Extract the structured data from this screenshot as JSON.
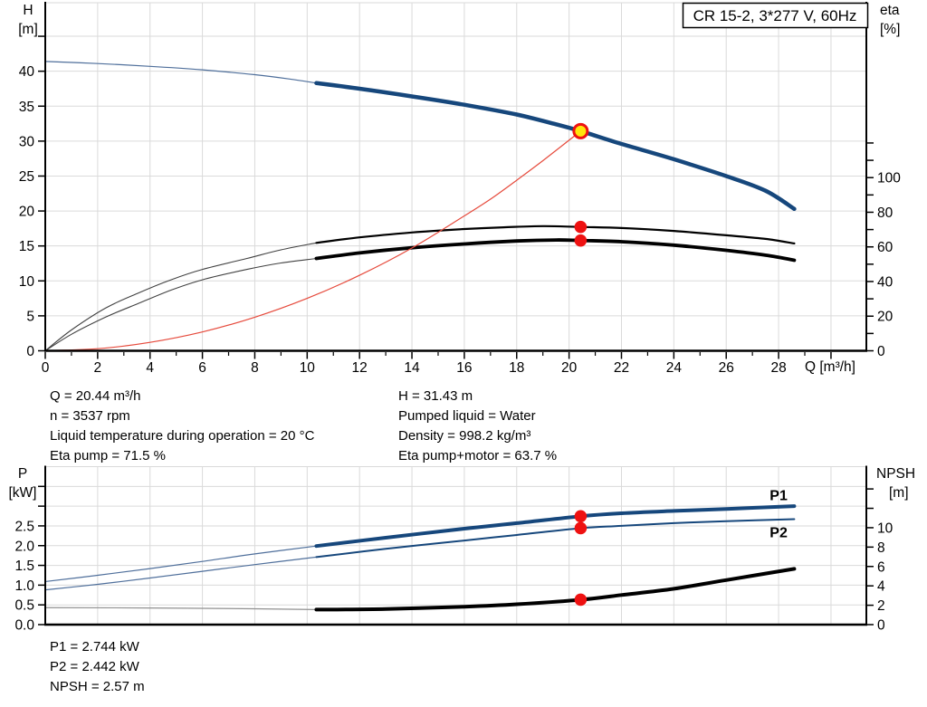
{
  "colors": {
    "navy": "#16477c",
    "navy_thin": "#4f6f9b",
    "black": "#000000",
    "black_thin": "#404040",
    "gray_thin": "#909090",
    "red": "#e64a3c",
    "red_dot": "#ee1111",
    "yellow": "#ffe50a",
    "grid": "#dadada"
  },
  "info_blocks": {
    "upper_left": [
      "Q = 20.44 m³/h",
      "n = 3537 rpm",
      "Liquid temperature during operation = 20 °C",
      "Eta pump = 71.5 %"
    ],
    "upper_right": [
      "H = 31.43 m",
      "Pumped liquid = Water",
      "Density = 998.2 kg/m³",
      "Eta pump+motor = 63.7 %"
    ],
    "lower": [
      "P1 = 2.744 kW",
      "P2 = 2.442 kW",
      "NPSH = 2.57 m"
    ]
  },
  "chart_data": [
    {
      "type": "line",
      "title": "CR 15-2, 3*277 V, 60Hz",
      "x": {
        "label": "Q [m³/h]",
        "lim": [
          0,
          31.35
        ],
        "major_labeled": [
          0,
          2,
          4,
          6,
          8,
          10,
          12,
          14,
          16,
          18,
          20,
          22,
          24,
          26,
          28
        ],
        "major_unlabeled": [
          30
        ],
        "minor": [
          1,
          3,
          5,
          7,
          9,
          11,
          13,
          15,
          17,
          19,
          21,
          23,
          25,
          27,
          29
        ],
        "grid": [
          2,
          4,
          6,
          8,
          10,
          12,
          14,
          16,
          18,
          20,
          22,
          24,
          26,
          28,
          30
        ]
      },
      "y_left": {
        "title_lines": [
          "H",
          "[m]"
        ],
        "lim": [
          0,
          49.8
        ],
        "ticks": [
          {
            "v": 0,
            "t": "0"
          },
          {
            "v": 5,
            "t": "5"
          },
          {
            "v": 10,
            "t": "10"
          },
          {
            "v": 15,
            "t": "15"
          },
          {
            "v": 20,
            "t": "20"
          },
          {
            "v": 25,
            "t": "25"
          },
          {
            "v": 30,
            "t": "30"
          },
          {
            "v": 35,
            "t": "35"
          },
          {
            "v": 40,
            "t": "40"
          },
          {
            "v": 45,
            "t": ""
          }
        ],
        "grid": [
          5,
          10,
          15,
          20,
          25,
          30,
          35,
          40,
          45
        ]
      },
      "y_right": {
        "title_lines": [
          "eta",
          "[%]"
        ],
        "lim": [
          0,
          201
        ],
        "ticks": [
          {
            "v": 0,
            "t": "0"
          },
          {
            "v": 10,
            "t": ""
          },
          {
            "v": 20,
            "t": "20"
          },
          {
            "v": 30,
            "t": ""
          },
          {
            "v": 40,
            "t": "40"
          },
          {
            "v": 50,
            "t": ""
          },
          {
            "v": 60,
            "t": "60"
          },
          {
            "v": 70,
            "t": ""
          },
          {
            "v": 80,
            "t": "80"
          },
          {
            "v": 90,
            "t": ""
          },
          {
            "v": 100,
            "t": "100"
          },
          {
            "v": 110,
            "t": ""
          },
          {
            "v": 120,
            "t": ""
          }
        ],
        "grid": []
      },
      "series": [
        {
          "name": "qh-out-of-range",
          "axis": "left",
          "color": "navy_thin",
          "width": 1.2,
          "points": [
            [
              0,
              41.4
            ],
            [
              2,
              41.1
            ],
            [
              4,
              40.7
            ],
            [
              6,
              40.2
            ],
            [
              8,
              39.5
            ],
            [
              9.3,
              38.9
            ],
            [
              10.35,
              38.3
            ]
          ]
        },
        {
          "name": "qh",
          "axis": "left",
          "color": "navy",
          "width": 4.5,
          "points": [
            [
              10.35,
              38.3
            ],
            [
              12,
              37.5
            ],
            [
              14,
              36.4
            ],
            [
              16,
              35.2
            ],
            [
              18,
              33.8
            ],
            [
              19.5,
              32.4
            ],
            [
              20.44,
              31.43
            ],
            [
              22,
              29.6
            ],
            [
              24,
              27.4
            ],
            [
              26,
              25.0
            ],
            [
              27.5,
              22.9
            ],
            [
              28.6,
              20.3
            ]
          ]
        },
        {
          "name": "eta-pump-out-of-range",
          "axis": "right",
          "color": "black_thin",
          "width": 1.1,
          "points": [
            [
              0,
              0
            ],
            [
              1,
              12
            ],
            [
              2.3,
              24.6
            ],
            [
              3.5,
              33
            ],
            [
              4.8,
              41
            ],
            [
              6,
              47
            ],
            [
              7.7,
              53.3
            ],
            [
              9,
              58.3
            ],
            [
              10.35,
              62.3
            ]
          ]
        },
        {
          "name": "eta-pump",
          "axis": "right",
          "color": "black",
          "width": 2.2,
          "points": [
            [
              10.35,
              62.3
            ],
            [
              12,
              65.5
            ],
            [
              14,
              68.3
            ],
            [
              16,
              70.3
            ],
            [
              17.5,
              71.3
            ],
            [
              19,
              72.0
            ],
            [
              20.44,
              71.5
            ],
            [
              22,
              70.9
            ],
            [
              24,
              69.2
            ],
            [
              26,
              66.7
            ],
            [
              27.5,
              64.6
            ],
            [
              28.6,
              62.0
            ]
          ]
        },
        {
          "name": "eta-pump-motor-out-of-range",
          "axis": "right",
          "color": "black_thin",
          "width": 1.1,
          "points": [
            [
              0,
              0
            ],
            [
              1,
              9.5
            ],
            [
              2.3,
              19.4
            ],
            [
              3.5,
              27
            ],
            [
              4.8,
              35
            ],
            [
              6,
              41
            ],
            [
              7.7,
              47
            ],
            [
              9,
              50.7
            ],
            [
              10.35,
              53.3
            ]
          ]
        },
        {
          "name": "eta-pump-motor",
          "axis": "right",
          "color": "black",
          "width": 3.8,
          "points": [
            [
              10.35,
              53.3
            ],
            [
              12,
              56.5
            ],
            [
              14,
              59.5
            ],
            [
              16,
              61.7
            ],
            [
              18,
              63.4
            ],
            [
              19.5,
              64.0
            ],
            [
              20.44,
              63.7
            ],
            [
              22,
              63.0
            ],
            [
              24,
              61.0
            ],
            [
              26,
              58.0
            ],
            [
              27.5,
              55.2
            ],
            [
              28.6,
              52.3
            ]
          ]
        },
        {
          "name": "system-curve",
          "axis": "left",
          "color": "red",
          "width": 1.2,
          "points": [
            [
              0,
              0.02
            ],
            [
              2,
              0.3
            ],
            [
              4,
              1.2
            ],
            [
              6,
              2.7
            ],
            [
              8,
              4.8
            ],
            [
              10,
              7.5
            ],
            [
              12,
              10.8
            ],
            [
              14,
              14.7
            ],
            [
              16,
              19.3
            ],
            [
              17,
              21.7
            ],
            [
              18,
              24.4
            ],
            [
              19,
              27.2
            ],
            [
              20.44,
              31.43
            ]
          ]
        }
      ],
      "markers": [
        {
          "kind": "dot",
          "axis": "right",
          "q": 20.44,
          "v": 71.5
        },
        {
          "kind": "dot",
          "axis": "right",
          "q": 20.44,
          "v": 63.7
        },
        {
          "kind": "duty",
          "axis": "left",
          "q": 20.44,
          "v": 31.43
        }
      ],
      "curve_labels": []
    },
    {
      "type": "line",
      "x": {
        "label": "",
        "lim": [
          0,
          31.35
        ],
        "major_labeled": [],
        "major_unlabeled": [],
        "minor": [],
        "grid": [
          2,
          4,
          6,
          8,
          10,
          12,
          14,
          16,
          18,
          20,
          22,
          24,
          26,
          28,
          30
        ]
      },
      "y_left": {
        "title_lines": [
          "P",
          "[kW]"
        ],
        "lim": [
          0,
          4.0
        ],
        "ticks": [
          {
            "v": 0,
            "t": "0.0"
          },
          {
            "v": 0.5,
            "t": "0.5"
          },
          {
            "v": 1.0,
            "t": "1.0"
          },
          {
            "v": 1.5,
            "t": "1.5"
          },
          {
            "v": 2.0,
            "t": "2.0"
          },
          {
            "v": 2.5,
            "t": "2.5"
          },
          {
            "v": 3.0,
            "t": ""
          },
          {
            "v": 3.5,
            "t": ""
          }
        ],
        "grid": [
          0.5,
          1.0,
          1.5,
          2.0,
          2.5,
          3.0,
          3.5
        ]
      },
      "y_right": {
        "title_lines": [
          "NPSH",
          "[m]"
        ],
        "lim": [
          0,
          16.3
        ],
        "ticks": [
          {
            "v": 0,
            "t": "0"
          },
          {
            "v": 2,
            "t": "2"
          },
          {
            "v": 4,
            "t": "4"
          },
          {
            "v": 6,
            "t": "6"
          },
          {
            "v": 8,
            "t": "8"
          },
          {
            "v": 10,
            "t": "10"
          },
          {
            "v": 12,
            "t": ""
          },
          {
            "v": 14,
            "t": ""
          }
        ],
        "grid": []
      },
      "series": [
        {
          "name": "p1-out-of-range",
          "axis": "left",
          "color": "navy_thin",
          "width": 1.2,
          "points": [
            [
              0,
              1.09
            ],
            [
              2,
              1.25
            ],
            [
              4,
              1.42
            ],
            [
              6,
              1.6
            ],
            [
              8,
              1.79
            ],
            [
              10.35,
              1.99
            ]
          ]
        },
        {
          "name": "p1",
          "axis": "left",
          "color": "navy",
          "width": 4,
          "points": [
            [
              10.35,
              1.99
            ],
            [
              13,
              2.2
            ],
            [
              16,
              2.43
            ],
            [
              18,
              2.57
            ],
            [
              20.44,
              2.744
            ],
            [
              22,
              2.82
            ],
            [
              24,
              2.88
            ],
            [
              26,
              2.93
            ],
            [
              28.6,
              3.0
            ]
          ]
        },
        {
          "name": "p2-out-of-range",
          "axis": "left",
          "color": "navy_thin",
          "width": 1.2,
          "points": [
            [
              0,
              0.88
            ],
            [
              2,
              1.02
            ],
            [
              4,
              1.18
            ],
            [
              6,
              1.35
            ],
            [
              8,
              1.52
            ],
            [
              10.35,
              1.71
            ]
          ]
        },
        {
          "name": "p2",
          "axis": "left",
          "color": "navy",
          "width": 2,
          "points": [
            [
              10.35,
              1.71
            ],
            [
              13,
              1.92
            ],
            [
              16,
              2.13
            ],
            [
              18,
              2.27
            ],
            [
              20.44,
              2.442
            ],
            [
              22,
              2.5
            ],
            [
              24,
              2.57
            ],
            [
              26,
              2.62
            ],
            [
              28.6,
              2.67
            ]
          ]
        },
        {
          "name": "npsh-out-of-range",
          "axis": "right",
          "color": "gray_thin",
          "width": 1.2,
          "points": [
            [
              0,
              1.75
            ],
            [
              4,
              1.72
            ],
            [
              8,
              1.63
            ],
            [
              10.35,
              1.55
            ]
          ]
        },
        {
          "name": "npsh",
          "axis": "right",
          "color": "black",
          "width": 4,
          "points": [
            [
              10.35,
              1.55
            ],
            [
              13,
              1.62
            ],
            [
              16,
              1.85
            ],
            [
              18,
              2.1
            ],
            [
              20.44,
              2.57
            ],
            [
              22,
              3.05
            ],
            [
              24,
              3.7
            ],
            [
              26,
              4.6
            ],
            [
              28.6,
              5.75
            ]
          ]
        }
      ],
      "markers": [
        {
          "kind": "dot",
          "axis": "left",
          "q": 20.44,
          "v": 2.744
        },
        {
          "kind": "dot",
          "axis": "left",
          "q": 20.44,
          "v": 2.442
        },
        {
          "kind": "dot",
          "axis": "right",
          "q": 20.44,
          "v": 2.57
        }
      ],
      "curve_labels": [
        {
          "text": "P1",
          "q": 28.0,
          "v": 3.27,
          "axis": "left"
        },
        {
          "text": "P2",
          "q": 28.0,
          "v": 2.33,
          "axis": "left"
        }
      ]
    }
  ]
}
